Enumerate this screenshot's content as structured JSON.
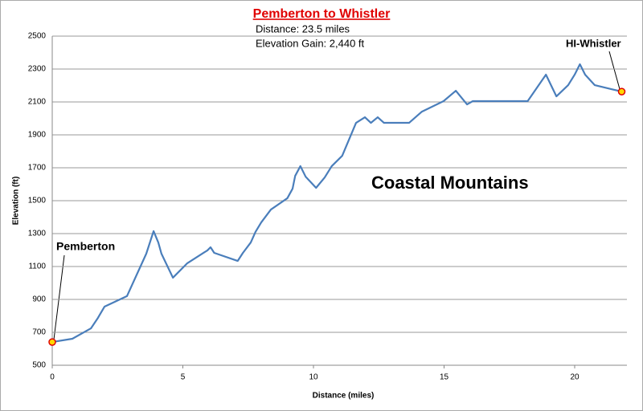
{
  "chart_data": {
    "type": "line",
    "title": "Pemberton to Whistler",
    "subtitle": [
      "Distance: 23.5 miles",
      "Elevation Gain: 2,440 ft"
    ],
    "x_label": "Distance (miles)",
    "y_label": "Elevation (ft)",
    "annotations": [
      "Pemberton",
      "HI-Whistler",
      "Coastal Mountains"
    ],
    "x": [
      0,
      0.77,
      1.48,
      1.75,
      2.0,
      2.86,
      3.6,
      3.88,
      4.06,
      4.18,
      4.62,
      5.17,
      5.94,
      6.06,
      6.2,
      7.1,
      7.3,
      7.6,
      7.78,
      8.0,
      8.37,
      9.0,
      9.2,
      9.3,
      9.5,
      9.7,
      10.1,
      10.43,
      10.7,
      11.1,
      11.63,
      11.97,
      12.2,
      12.46,
      12.7,
      13.66,
      14.15,
      14.98,
      15.45,
      15.88,
      16.1,
      18.2,
      18.9,
      19.3,
      19.75,
      20.0,
      20.2,
      20.4,
      20.77,
      21.8
    ],
    "series": [
      {
        "name": "Elevation",
        "color": "#4a7ebb",
        "values": [
          641,
          661,
          724,
          788,
          856,
          920,
          1178,
          1315,
          1246,
          1178,
          1032,
          1120,
          1198,
          1217,
          1183,
          1134,
          1183,
          1246,
          1310,
          1368,
          1446,
          1515,
          1573,
          1651,
          1710,
          1646,
          1578,
          1641,
          1710,
          1773,
          1973,
          2007,
          1973,
          2007,
          1973,
          1973,
          2041,
          2105,
          2168,
          2085,
          2105,
          2105,
          2266,
          2134,
          2202,
          2266,
          2329,
          2266,
          2202,
          2163
        ]
      }
    ],
    "xlim": [
      0,
      22
    ],
    "xticks": [
      0,
      5,
      10,
      15,
      20
    ],
    "ylim": [
      500,
      2500
    ],
    "yticks": [
      500,
      700,
      900,
      1100,
      1300,
      1500,
      1700,
      1900,
      2100,
      2300,
      2500
    ],
    "grid": true
  }
}
